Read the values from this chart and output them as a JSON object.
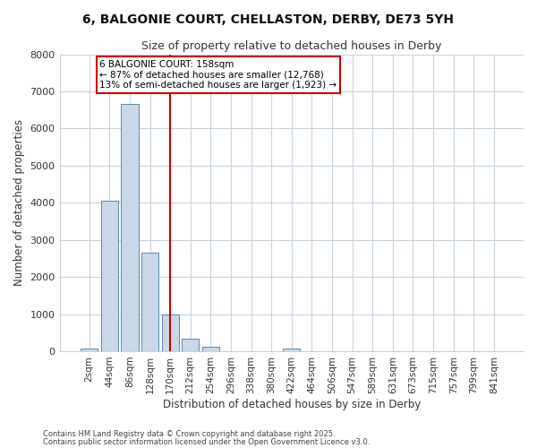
{
  "title_line1": "6, BALGONIE COURT, CHELLASTON, DERBY, DE73 5YH",
  "title_line2": "Size of property relative to detached houses in Derby",
  "xlabel": "Distribution of detached houses by size in Derby",
  "ylabel": "Number of detached properties",
  "bin_labels": [
    "2sqm",
    "44sqm",
    "86sqm",
    "128sqm",
    "170sqm",
    "212sqm",
    "254sqm",
    "296sqm",
    "338sqm",
    "380sqm",
    "422sqm",
    "464sqm",
    "506sqm",
    "547sqm",
    "589sqm",
    "631sqm",
    "673sqm",
    "715sqm",
    "757sqm",
    "799sqm",
    "841sqm"
  ],
  "bar_values": [
    75,
    4050,
    6650,
    2650,
    1000,
    330,
    110,
    0,
    0,
    0,
    75,
    0,
    0,
    0,
    0,
    0,
    0,
    0,
    0,
    0,
    0
  ],
  "bar_color": "#c8d8e8",
  "bar_edge_color": "#5588aa",
  "background_color": "#ffffff",
  "grid_color": "#c8d4e0",
  "property_line_x": 4.0,
  "property_line_color": "#cc0000",
  "annotation_text": "6 BALGONIE COURT: 158sqm\n← 87% of detached houses are smaller (12,768)\n13% of semi-detached houses are larger (1,923) →",
  "annotation_box_color": "#cc0000",
  "ylim": [
    0,
    8000
  ],
  "yticks": [
    0,
    1000,
    2000,
    3000,
    4000,
    5000,
    6000,
    7000,
    8000
  ],
  "footnote1": "Contains HM Land Registry data © Crown copyright and database right 2025.",
  "footnote2": "Contains public sector information licensed under the Open Government Licence v3.0."
}
